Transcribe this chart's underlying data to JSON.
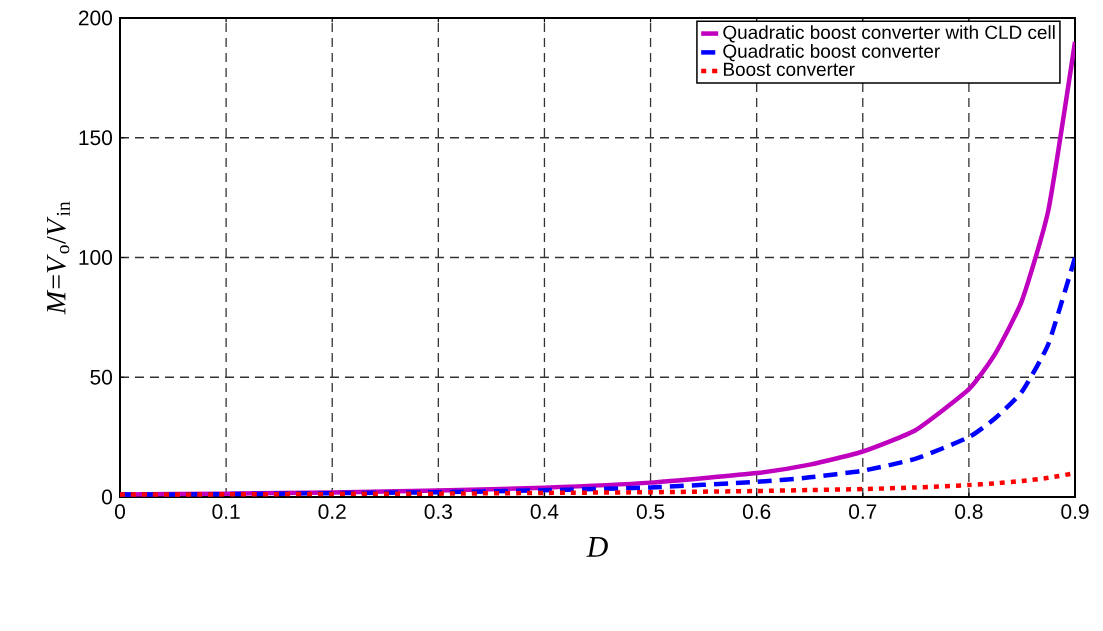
{
  "chart_data": {
    "type": "line",
    "xlabel": "D",
    "ylabel": "*M*=*V*$_{o}$/*V*$_{in}$",
    "x": [
      0,
      0.1,
      0.2,
      0.3,
      0.4,
      0.5,
      0.6,
      0.65,
      0.7,
      0.75,
      0.8,
      0.825,
      0.85,
      0.875,
      0.9
    ],
    "series": [
      {
        "name": "Quadratic boost converter with CLD cell",
        "color": "#bf00bf",
        "line_style": "solid",
        "values": [
          1,
          1.4,
          1.9,
          2.7,
          3.9,
          6,
          10,
          13.5,
          19,
          28,
          45,
          60,
          82,
          120,
          190
        ]
      },
      {
        "name": "Quadratic boost converter",
        "color": "#0000ff",
        "line_style": "dashed",
        "values": [
          1,
          1.2,
          1.6,
          2,
          2.8,
          4,
          6.3,
          8.2,
          11,
          16,
          25,
          33,
          44,
          64,
          100
        ]
      },
      {
        "name": "Boost converter",
        "color": "#ff0000",
        "line_style": "dotted",
        "values": [
          1,
          1.1,
          1.3,
          1.4,
          1.7,
          2,
          2.5,
          2.9,
          3.3,
          4,
          5,
          5.7,
          6.7,
          8,
          10
        ]
      }
    ],
    "xlim": [
      0,
      0.9
    ],
    "ylim": [
      0,
      200
    ],
    "xticks": [
      0,
      0.1,
      0.2,
      0.3,
      0.4,
      0.5,
      0.6,
      0.7,
      0.8,
      0.9
    ],
    "yticks": [
      0,
      50,
      100,
      150,
      200
    ],
    "grid": true,
    "legend": "top right"
  }
}
